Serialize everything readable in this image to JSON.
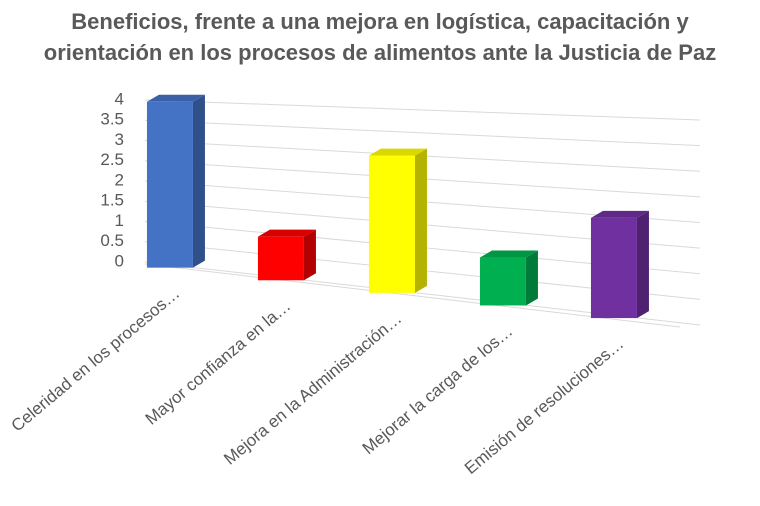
{
  "chart_data": {
    "type": "bar",
    "title": "Beneficios, frente a una mejora en logística, capacitación y orientación en los procesos de alimentos ante la Justicia de Paz",
    "categories": [
      "Celeridad en los procesos…",
      "Mayor confianza en la…",
      "Mejora en la Administración…",
      "Mejorar la carga de los…",
      "Emisión de resoluciones…"
    ],
    "values": [
      4,
      1,
      3,
      1,
      2
    ],
    "colors": [
      "#4472c4",
      "#ff0000",
      "#ffff00",
      "#00b050",
      "#7030a0"
    ],
    "ylim": [
      0,
      4
    ],
    "yticks": [
      0,
      0.5,
      1,
      1.5,
      2,
      2.5,
      3,
      3.5,
      4
    ],
    "grid": true
  }
}
